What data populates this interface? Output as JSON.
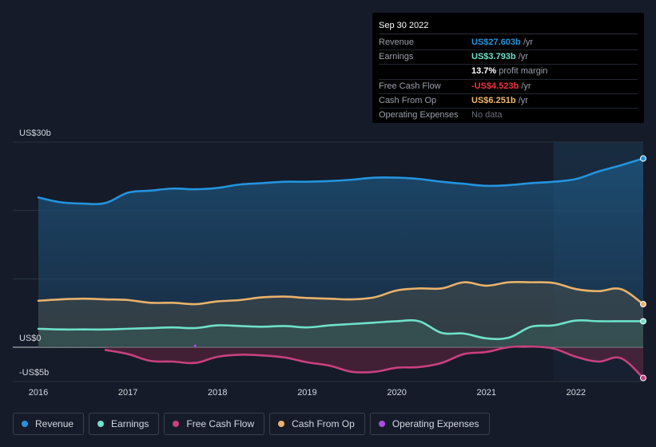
{
  "tooltip": {
    "date": "Sep 30 2022",
    "rows": [
      {
        "label": "Revenue",
        "value": "US$27.603b",
        "suffix": " /yr",
        "color": "#2394df"
      },
      {
        "label": "Earnings",
        "value": "US$3.793b",
        "suffix": " /yr",
        "color": "#6ee1c9"
      },
      {
        "label": "",
        "value": "13.7%",
        "suffix": " profit margin",
        "color": "#ffffff"
      },
      {
        "label": "Free Cash Flow",
        "value": "-US$4.523b",
        "suffix": " /yr",
        "color": "#f0343d"
      },
      {
        "label": "Cash From Op",
        "value": "US$6.251b",
        "suffix": " /yr",
        "color": "#f0b86a"
      },
      {
        "label": "Operating Expenses",
        "value": "No data",
        "suffix": "",
        "color": "#6a707a"
      }
    ]
  },
  "legend": [
    {
      "label": "Revenue",
      "color": "#2394df"
    },
    {
      "label": "Earnings",
      "color": "#6ee1c9"
    },
    {
      "label": "Free Cash Flow",
      "color": "#c9407f"
    },
    {
      "label": "Cash From Op",
      "color": "#e9b26b"
    },
    {
      "label": "Operating Expenses",
      "color": "#a94de6"
    }
  ],
  "chart_data": {
    "type": "area",
    "title": "",
    "xlabel": "",
    "ylabel": "",
    "x_ticks": [
      2016,
      2017,
      2018,
      2019,
      2020,
      2021,
      2022
    ],
    "x_tick_labels": [
      "2016",
      "2017",
      "2018",
      "2019",
      "2020",
      "2021",
      "2022"
    ],
    "xlim": [
      2016.0,
      2022.75
    ],
    "ylim": [
      -5,
      30
    ],
    "y_tick_labels": [
      {
        "value": 30,
        "label": "US$30b"
      },
      {
        "value": 0,
        "label": "US$0"
      },
      {
        "value": -5,
        "label": "-US$5b"
      }
    ],
    "highlight_from": 2021.75,
    "series": [
      {
        "name": "Revenue",
        "color": "#2394df",
        "x": [
          2016.0,
          2016.25,
          2016.5,
          2016.75,
          2017.0,
          2017.25,
          2017.5,
          2017.75,
          2018.0,
          2018.25,
          2018.5,
          2018.75,
          2019.0,
          2019.25,
          2019.5,
          2019.75,
          2020.0,
          2020.25,
          2020.5,
          2020.75,
          2021.0,
          2021.25,
          2021.5,
          2021.75,
          2022.0,
          2022.25,
          2022.5,
          2022.75
        ],
        "values": [
          21.9,
          21.2,
          21.0,
          21.1,
          22.6,
          22.9,
          23.2,
          23.1,
          23.3,
          23.8,
          24.0,
          24.2,
          24.2,
          24.3,
          24.5,
          24.8,
          24.8,
          24.6,
          24.2,
          23.9,
          23.6,
          23.7,
          24.0,
          24.2,
          24.6,
          25.7,
          26.6,
          27.6
        ]
      },
      {
        "name": "Earnings",
        "color": "#6ee1c9",
        "x": [
          2016.0,
          2016.25,
          2016.5,
          2016.75,
          2017.0,
          2017.25,
          2017.5,
          2017.75,
          2018.0,
          2018.25,
          2018.5,
          2018.75,
          2019.0,
          2019.25,
          2019.5,
          2019.75,
          2020.0,
          2020.25,
          2020.5,
          2020.75,
          2021.0,
          2021.25,
          2021.5,
          2021.75,
          2022.0,
          2022.25,
          2022.5,
          2022.75
        ],
        "values": [
          2.7,
          2.6,
          2.6,
          2.6,
          2.7,
          2.8,
          2.9,
          2.8,
          3.2,
          3.1,
          3.0,
          3.1,
          2.9,
          3.2,
          3.4,
          3.6,
          3.8,
          3.8,
          2.1,
          2.0,
          1.3,
          1.4,
          3.0,
          3.2,
          3.9,
          3.8,
          3.8,
          3.8
        ]
      },
      {
        "name": "Cash From Op",
        "color": "#e9b26b",
        "x": [
          2016.0,
          2016.25,
          2016.5,
          2016.75,
          2017.0,
          2017.25,
          2017.5,
          2017.75,
          2018.0,
          2018.25,
          2018.5,
          2018.75,
          2019.0,
          2019.25,
          2019.5,
          2019.75,
          2020.0,
          2020.25,
          2020.5,
          2020.75,
          2021.0,
          2021.25,
          2021.5,
          2021.75,
          2022.0,
          2022.25,
          2022.5,
          2022.75
        ],
        "values": [
          6.8,
          7.0,
          7.1,
          7.0,
          6.9,
          6.5,
          6.5,
          6.3,
          6.7,
          6.9,
          7.3,
          7.4,
          7.2,
          7.1,
          7.0,
          7.3,
          8.3,
          8.6,
          8.6,
          9.5,
          9.0,
          9.5,
          9.5,
          9.4,
          8.5,
          8.2,
          8.5,
          6.3
        ]
      },
      {
        "name": "Free Cash Flow",
        "color": "#c9407f",
        "x": [
          2016.75,
          2017.0,
          2017.25,
          2017.5,
          2017.75,
          2018.0,
          2018.25,
          2018.5,
          2018.75,
          2019.0,
          2019.25,
          2019.5,
          2019.75,
          2020.0,
          2020.25,
          2020.5,
          2020.75,
          2021.0,
          2021.25,
          2021.5,
          2021.75,
          2022.0,
          2022.25,
          2022.5,
          2022.75
        ],
        "values": [
          -0.4,
          -1.0,
          -2.0,
          -2.1,
          -2.3,
          -1.4,
          -1.1,
          -1.2,
          -1.5,
          -2.2,
          -2.7,
          -3.6,
          -3.6,
          -3.0,
          -2.9,
          -2.3,
          -1.0,
          -0.7,
          0.0,
          0.1,
          -0.2,
          -1.4,
          -2.1,
          -1.6,
          -4.5
        ]
      }
    ],
    "operating_expenses_point": {
      "x": 2017.75,
      "y": 0.2,
      "color": "#a94de6"
    }
  }
}
